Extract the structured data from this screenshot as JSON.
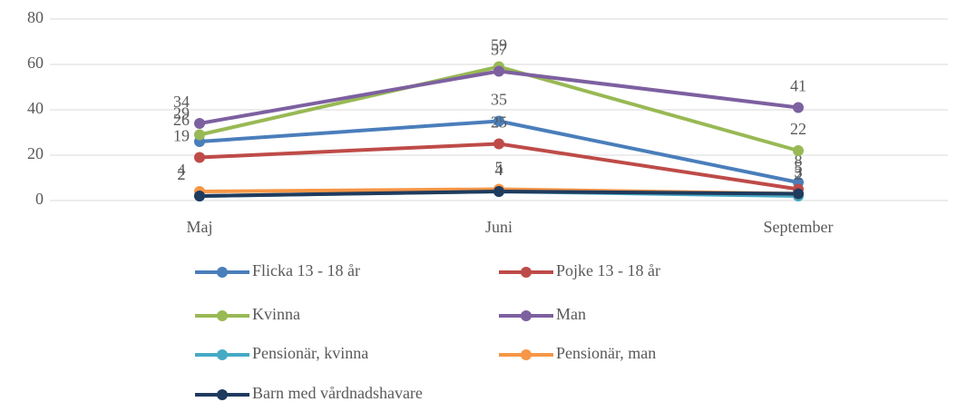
{
  "chart_data": {
    "type": "line",
    "categories": [
      "Maj",
      "Juni",
      "September"
    ],
    "series": [
      {
        "name": "Flicka 13 - 18 år",
        "color": "#4a7ebb",
        "values": [
          26,
          35,
          8
        ]
      },
      {
        "name": "Pojke 13 - 18 år",
        "color": "#be4b48",
        "values": [
          19,
          25,
          5
        ]
      },
      {
        "name": "Kvinna",
        "color": "#98b954",
        "values": [
          29,
          59,
          22
        ]
      },
      {
        "name": "Man",
        "color": "#7d60a0",
        "values": [
          34,
          57,
          41
        ]
      },
      {
        "name": "Pensionär, kvinna",
        "color": "#46aac5",
        "values": [
          2,
          4,
          2
        ]
      },
      {
        "name": "Pensionär, man",
        "color": "#f79646",
        "values": [
          4,
          5,
          3
        ]
      },
      {
        "name": "Barn med vårdnadshavare",
        "color": "#1f3b5e",
        "values": [
          2,
          4,
          3
        ]
      }
    ],
    "ylim": [
      0,
      80
    ],
    "yticks": [
      0,
      20,
      40,
      60,
      80
    ],
    "grid": true,
    "data_labels": true,
    "legend": "bottom"
  }
}
